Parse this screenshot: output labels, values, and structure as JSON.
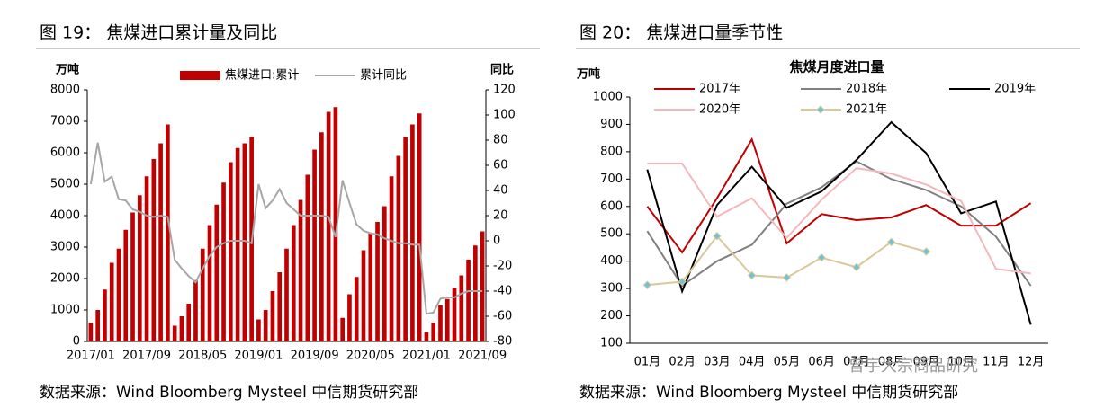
{
  "chart_data": [
    {
      "type": "bar",
      "title": "图 19：  焦煤进口累计量及同比",
      "ylabel": "万吨",
      "y2label": "同比",
      "source": "数据来源：Wind Bloomberg Mysteel 中信期货研究部",
      "categories": [
        "2017/01",
        null,
        null,
        null,
        null,
        null,
        null,
        null,
        "2017/09",
        null,
        null,
        null,
        null,
        null,
        null,
        null,
        "2018/05",
        null,
        null,
        null,
        null,
        null,
        null,
        null,
        "2019/01",
        null,
        null,
        null,
        null,
        null,
        null,
        null,
        "2019/09",
        null,
        null,
        null,
        null,
        null,
        null,
        null,
        "2020/05",
        null,
        null,
        null,
        null,
        null,
        null,
        null,
        "2021/01",
        null,
        null,
        null,
        null,
        null,
        null,
        null,
        "2021/09"
      ],
      "series": [
        {
          "name": "焦煤进口:累计",
          "color": "#c00000",
          "values": [
            600,
            1000,
            1650,
            2500,
            2950,
            3550,
            4100,
            4650,
            5250,
            5800,
            6300,
            6900,
            500,
            800,
            1200,
            1950,
            2950,
            3700,
            4350,
            5050,
            5700,
            6150,
            6300,
            6500,
            700,
            1000,
            1600,
            2200,
            2950,
            3700,
            4500,
            5300,
            6100,
            6650,
            7300,
            7450,
            750,
            1500,
            2050,
            2900,
            3450,
            3800,
            4300,
            5250,
            5900,
            6500,
            6900,
            7250,
            300,
            600,
            1150,
            1350,
            1700,
            2100,
            2600,
            3050,
            3500
          ]
        },
        {
          "name": "累计同比",
          "color": "#a6a6a6",
          "axis": "y2",
          "values": [
            45,
            78,
            47,
            51,
            33,
            32,
            25,
            23,
            20,
            19,
            20,
            19,
            -15,
            -22,
            -28,
            -33,
            -22,
            -12,
            -5,
            -2,
            0,
            0,
            0,
            -2,
            45,
            26,
            32,
            41,
            30,
            25,
            20,
            20,
            20,
            20,
            19,
            3,
            48,
            30,
            13,
            8,
            6,
            5,
            2,
            0,
            -2,
            -2,
            -3,
            -3,
            -58,
            -57,
            -46,
            -45,
            -45,
            -42,
            -40,
            -40,
            -40
          ]
        }
      ],
      "ylim": [
        0,
        8000
      ],
      "yticks": [
        0,
        1000,
        2000,
        3000,
        4000,
        5000,
        6000,
        7000,
        8000
      ],
      "y2lim": [
        -80,
        120
      ],
      "y2ticks": [
        -80,
        -60,
        -40,
        -20,
        0,
        20,
        40,
        60,
        80,
        100,
        120
      ]
    },
    {
      "type": "line",
      "title": "图 20：  焦煤进口量季节性",
      "subtitle": "焦煤月度进口量",
      "ylabel": "万吨",
      "source": "数据来源：Wind Bloomberg Mysteel 中信期货研究部",
      "watermark": "曾宇大宗商品研究",
      "categories": [
        "01月",
        "02月",
        "03月",
        "04月",
        "05月",
        "06月",
        "07月",
        "08月",
        "09月",
        "10月",
        "11月",
        "12月"
      ],
      "series": [
        {
          "name": "2017年",
          "color": "#c00000",
          "values": [
            600,
            432,
            630,
            845,
            465,
            572,
            550,
            560,
            605,
            530,
            530,
            612
          ]
        },
        {
          "name": "2018年",
          "color": "#808080",
          "values": [
            510,
            310,
            400,
            460,
            610,
            670,
            765,
            700,
            660,
            600,
            490,
            310
          ]
        },
        {
          "name": "2019年",
          "color": "#000000",
          "values": [
            735,
            290,
            605,
            745,
            595,
            655,
            770,
            908,
            795,
            575,
            618,
            168
          ]
        },
        {
          "name": "2020年",
          "color": "#f4b8bc",
          "values": [
            757,
            757,
            563,
            630,
            485,
            625,
            740,
            720,
            680,
            620,
            372,
            355
          ]
        },
        {
          "name": "2021年",
          "color": "#d9c89a",
          "marker": "diamond",
          "marker_color": "#6fc3d6",
          "values": [
            313,
            325,
            492,
            348,
            340,
            413,
            378,
            470,
            435,
            null,
            null,
            null
          ]
        }
      ],
      "ylim": [
        100,
        1000
      ],
      "yticks": [
        100,
        200,
        300,
        400,
        500,
        600,
        700,
        800,
        900,
        1000
      ]
    }
  ]
}
